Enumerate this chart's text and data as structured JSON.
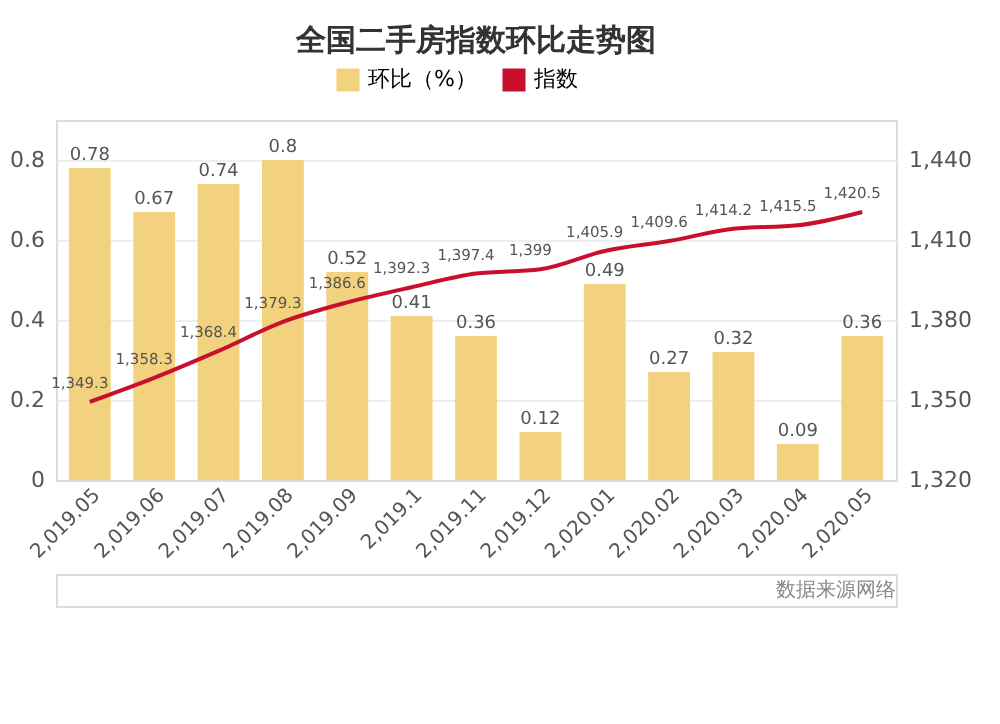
{
  "chart_data": {
    "type": "bar",
    "title": "全国二手房指数环比走势图",
    "categories": [
      "2,019.05",
      "2,019.06",
      "2,019.07",
      "2,019.08",
      "2,019.09",
      "2,019.1",
      "2,019.11",
      "2,019.12",
      "2,020.01",
      "2,020.02",
      "2,020.03",
      "2,020.04",
      "2,020.05"
    ],
    "series": [
      {
        "name": "环比（%）",
        "color": "#f3d27f",
        "values": [
          0.78,
          0.67,
          0.74,
          0.8,
          0.52,
          0.41,
          0.36,
          0.12,
          0.49,
          0.27,
          0.32,
          0.09,
          0.36
        ],
        "value_labels": [
          "0.78",
          "0.67",
          "0.74",
          "0.8",
          "0.52",
          "0.41",
          "0.36",
          "0.12",
          "0.49",
          "0.27",
          "0.32",
          "0.09",
          "0.36"
        ]
      },
      {
        "name": "指数",
        "type": "line",
        "axis": "y2",
        "color": "#c8102e",
        "values": [
          1349.3,
          1358.3,
          1368.4,
          1379.3,
          1386.6,
          1392.3,
          1397.4,
          1399,
          1405.9,
          1409.6,
          1414.2,
          1415.5,
          1420.5
        ],
        "value_labels": [
          "1,349.3",
          "1,358.3",
          "1,368.4",
          "1,379.3",
          "1,386.6",
          "1,392.3",
          "1,397.4",
          "1,399",
          "1,405.9",
          "1,409.6",
          "1,414.2",
          "1,415.5",
          "1,420.5"
        ]
      }
    ],
    "ylim": [
      0,
      0.9
    ],
    "yticks": [
      {
        "value": 0,
        "label": "0"
      },
      0.2,
      0.4,
      0.6,
      0.8
    ],
    "y2lim": [
      1320,
      1455
    ],
    "y2ticks": [
      {
        "value": 1320,
        "label": "1,320"
      },
      {
        "value": 1350,
        "label": "1,350"
      },
      {
        "value": 1380,
        "label": "1,380"
      },
      {
        "value": 1410,
        "label": "1,410"
      },
      {
        "value": 1440,
        "label": "1,440"
      }
    ],
    "grid": "y",
    "legend": "top",
    "annotations": [
      "数据来源网络"
    ]
  }
}
